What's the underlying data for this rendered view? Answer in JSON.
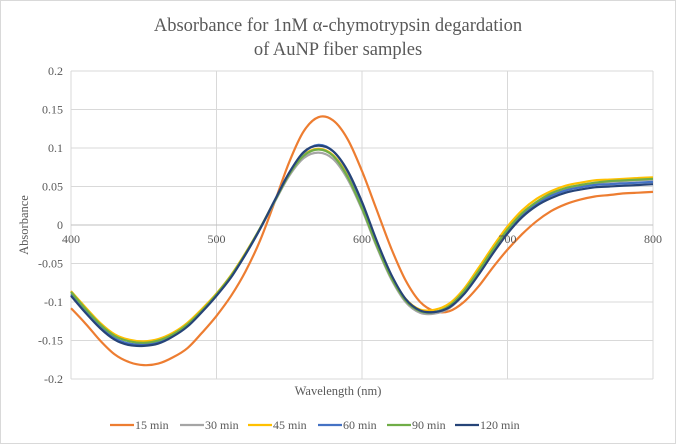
{
  "chart_data": {
    "type": "line",
    "title": "Absorbance for 1nM α-chymotrypsin degardation of AuNP fiber samples",
    "title_lines": [
      "Absorbance for 1nM α-chymotrypsin degardation",
      "of AuNP fiber samples"
    ],
    "xlabel": "Wavelength (nm)",
    "ylabel": "Absorbance",
    "xlim": [
      400,
      800
    ],
    "ylim": [
      -0.2,
      0.2
    ],
    "x_ticks": [
      "400",
      "500",
      "600",
      "700",
      "800"
    ],
    "y_ticks": [
      "0.2",
      "0.15",
      "0.1",
      "0.05",
      "0",
      "-0.05",
      "-0.1",
      "-0.15",
      "-0.2"
    ],
    "y_tick_values": [
      0.2,
      0.15,
      0.1,
      0.05,
      0,
      -0.05,
      -0.1,
      -0.15,
      -0.2
    ],
    "x_tick_values": [
      400,
      500,
      600,
      700,
      800
    ],
    "grid": true,
    "legend_position": "bottom",
    "x": [
      400,
      410,
      420,
      430,
      440,
      450,
      460,
      470,
      480,
      490,
      500,
      510,
      520,
      530,
      540,
      550,
      560,
      570,
      580,
      590,
      600,
      610,
      620,
      630,
      640,
      650,
      660,
      670,
      680,
      690,
      700,
      710,
      720,
      730,
      740,
      750,
      760,
      770,
      780,
      790,
      800
    ],
    "series": [
      {
        "name": "15 min",
        "color": "#ED7D31",
        "values": [
          -0.108,
          -0.128,
          -0.15,
          -0.168,
          -0.178,
          -0.182,
          -0.18,
          -0.172,
          -0.16,
          -0.14,
          -0.118,
          -0.092,
          -0.06,
          -0.02,
          0.03,
          0.082,
          0.122,
          0.14,
          0.136,
          0.112,
          0.07,
          0.02,
          -0.03,
          -0.072,
          -0.1,
          -0.112,
          -0.112,
          -0.1,
          -0.08,
          -0.055,
          -0.032,
          -0.012,
          0.005,
          0.018,
          0.027,
          0.033,
          0.037,
          0.039,
          0.041,
          0.042,
          0.043
        ]
      },
      {
        "name": "30 min",
        "color": "#A5A5A5",
        "values": [
          -0.086,
          -0.108,
          -0.128,
          -0.143,
          -0.15,
          -0.152,
          -0.149,
          -0.141,
          -0.128,
          -0.11,
          -0.09,
          -0.066,
          -0.037,
          -0.005,
          0.03,
          0.064,
          0.087,
          0.094,
          0.086,
          0.06,
          0.02,
          -0.028,
          -0.07,
          -0.1,
          -0.114,
          -0.115,
          -0.108,
          -0.09,
          -0.064,
          -0.036,
          -0.01,
          0.012,
          0.028,
          0.039,
          0.046,
          0.051,
          0.054,
          0.056,
          0.057,
          0.058,
          0.059
        ]
      },
      {
        "name": "45 min",
        "color": "#FFC000",
        "values": [
          -0.086,
          -0.107,
          -0.127,
          -0.142,
          -0.149,
          -0.151,
          -0.148,
          -0.14,
          -0.127,
          -0.109,
          -0.089,
          -0.065,
          -0.036,
          -0.004,
          0.032,
          0.067,
          0.091,
          0.099,
          0.091,
          0.065,
          0.024,
          -0.024,
          -0.066,
          -0.096,
          -0.11,
          -0.11,
          -0.102,
          -0.083,
          -0.056,
          -0.028,
          -0.002,
          0.019,
          0.034,
          0.044,
          0.051,
          0.055,
          0.058,
          0.059,
          0.06,
          0.061,
          0.062
        ]
      },
      {
        "name": "60 min",
        "color": "#4472C4",
        "values": [
          -0.09,
          -0.112,
          -0.132,
          -0.147,
          -0.154,
          -0.155,
          -0.152,
          -0.143,
          -0.13,
          -0.112,
          -0.091,
          -0.067,
          -0.038,
          -0.005,
          0.032,
          0.068,
          0.094,
          0.104,
          0.096,
          0.07,
          0.028,
          -0.022,
          -0.066,
          -0.097,
          -0.112,
          -0.113,
          -0.106,
          -0.088,
          -0.062,
          -0.034,
          -0.008,
          0.013,
          0.028,
          0.038,
          0.045,
          0.049,
          0.052,
          0.053,
          0.054,
          0.055,
          0.056
        ]
      },
      {
        "name": "90 min",
        "color": "#70AD47",
        "values": [
          -0.087,
          -0.109,
          -0.129,
          -0.144,
          -0.151,
          -0.153,
          -0.15,
          -0.142,
          -0.129,
          -0.111,
          -0.09,
          -0.066,
          -0.037,
          -0.004,
          0.031,
          0.066,
          0.09,
          0.098,
          0.09,
          0.063,
          0.022,
          -0.026,
          -0.068,
          -0.098,
          -0.112,
          -0.113,
          -0.105,
          -0.086,
          -0.06,
          -0.032,
          -0.006,
          0.015,
          0.03,
          0.041,
          0.048,
          0.052,
          0.055,
          0.057,
          0.058,
          0.059,
          0.06
        ]
      },
      {
        "name": "120 min",
        "color": "#264478",
        "values": [
          -0.092,
          -0.114,
          -0.134,
          -0.149,
          -0.156,
          -0.157,
          -0.154,
          -0.145,
          -0.132,
          -0.113,
          -0.092,
          -0.068,
          -0.038,
          -0.005,
          0.032,
          0.068,
          0.095,
          0.103,
          0.096,
          0.071,
          0.03,
          -0.02,
          -0.064,
          -0.096,
          -0.111,
          -0.113,
          -0.107,
          -0.09,
          -0.065,
          -0.037,
          -0.011,
          0.01,
          0.025,
          0.035,
          0.042,
          0.046,
          0.049,
          0.05,
          0.051,
          0.052,
          0.053
        ]
      }
    ]
  }
}
